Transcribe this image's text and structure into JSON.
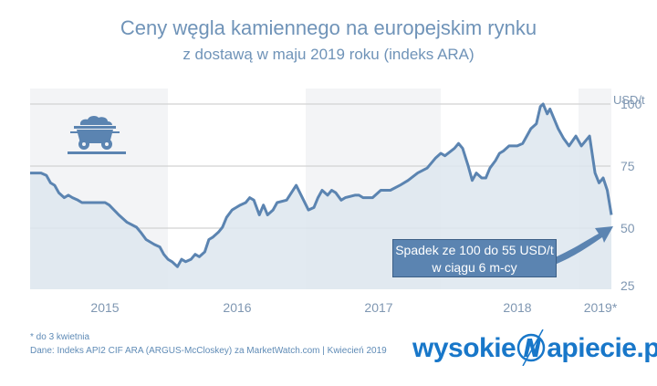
{
  "header": {
    "title": "Ceny węgla kamiennego na europejskim rynku",
    "subtitle": "z dostawą w maju 2019 roku (indeks ARA)",
    "unit": "USD/t"
  },
  "y_ticks": [
    "100",
    "75",
    "50",
    "25"
  ],
  "x_ticks": [
    "2015",
    "2016",
    "2017",
    "2018",
    "2019*"
  ],
  "callout": {
    "line1": "Spadek ze 100 do 55 USD/t",
    "line2": "w ciągu 6 m-cy"
  },
  "footer": {
    "note": "* do 3 kwietnia",
    "source": "Dane: Indeks API2 CIF ARA (ARGUS-McCloskey) za MarketWatch.com |  Kwiecień 2019"
  },
  "logo": {
    "left": "wysokie",
    "right": "apiecie.pl"
  },
  "colors": {
    "line": "#5b84b1",
    "area": "#e3eaf1",
    "band": "#f3f4f6",
    "text": "#7f97b2",
    "logo": "#1877c9"
  },
  "chart_data": {
    "type": "area",
    "title": "Ceny węgla kamiennego na europejskim rynku",
    "subtitle": "z dostawą w maju 2019 roku (indeks ARA)",
    "xlabel": "",
    "ylabel": "USD/t",
    "ylim": [
      25,
      100
    ],
    "y_ticks": [
      25,
      50,
      75,
      100
    ],
    "x_tick_labels": [
      "2015",
      "2016",
      "2017",
      "2018",
      "2019*"
    ],
    "grid": true,
    "legend": null,
    "annotation": "Spadek ze 100 do 55 USD/t w ciągu 6 m-cy",
    "series": [
      {
        "name": "API2 CIF ARA (maj 2019)",
        "x": [
          2015.0,
          2015.08,
          2015.12,
          2015.15,
          2015.18,
          2015.21,
          2015.25,
          2015.28,
          2015.31,
          2015.35,
          2015.38,
          2015.55,
          2015.58,
          2015.65,
          2015.71,
          2015.78,
          2015.81,
          2015.85,
          2015.91,
          2015.95,
          2015.98,
          2016.01,
          2016.04,
          2016.08,
          2016.11,
          2016.14,
          2016.18,
          2016.21,
          2016.24,
          2016.28,
          2016.31,
          2016.34,
          2016.38,
          2016.41,
          2016.44,
          2016.48,
          2016.51,
          2016.54,
          2016.58,
          2016.61,
          2016.64,
          2016.68,
          2016.71,
          2016.74,
          2016.78,
          2016.81,
          2016.88,
          2016.95,
          2017.04,
          2017.08,
          2017.11,
          2017.14,
          2017.18,
          2017.21,
          2017.24,
          2017.28,
          2017.31,
          2017.38,
          2017.41,
          2017.44,
          2017.51,
          2017.57,
          2017.64,
          2017.71,
          2017.77,
          2017.84,
          2017.91,
          2017.97,
          2018.01,
          2018.04,
          2018.11,
          2018.14,
          2018.17,
          2018.21,
          2018.24,
          2018.27,
          2018.31,
          2018.34,
          2018.37,
          2018.41,
          2018.44,
          2018.47,
          2018.51,
          2018.57,
          2018.61,
          2018.64,
          2018.67,
          2018.71,
          2018.74,
          2018.76,
          2018.79,
          2018.81,
          2018.84,
          2018.87,
          2018.91,
          2018.95,
          2019.0,
          2019.04,
          2019.1,
          2019.14,
          2019.17,
          2019.2,
          2019.23,
          2019.26
        ],
        "values": [
          72,
          72,
          71,
          68,
          67,
          64,
          62,
          63,
          62,
          61,
          60,
          60,
          59,
          55,
          52,
          50,
          48,
          45,
          43,
          42,
          39,
          37,
          36,
          34,
          37,
          36,
          37,
          39,
          38,
          40,
          45,
          46,
          48,
          50,
          54,
          57,
          58,
          59,
          60,
          62,
          61,
          55,
          59,
          55,
          57,
          60,
          61,
          67,
          57,
          58,
          62,
          65,
          63,
          65,
          64,
          61,
          62,
          63,
          63,
          62,
          62,
          65,
          65,
          67,
          69,
          72,
          74,
          78,
          80,
          79,
          82,
          84,
          82,
          75,
          69,
          72,
          70,
          70,
          74,
          77,
          80,
          81,
          83,
          83,
          84,
          87,
          90,
          92,
          99,
          100,
          96,
          98,
          94,
          90,
          86,
          83,
          87,
          83,
          87,
          72,
          68,
          70,
          65,
          55
        ]
      }
    ]
  }
}
